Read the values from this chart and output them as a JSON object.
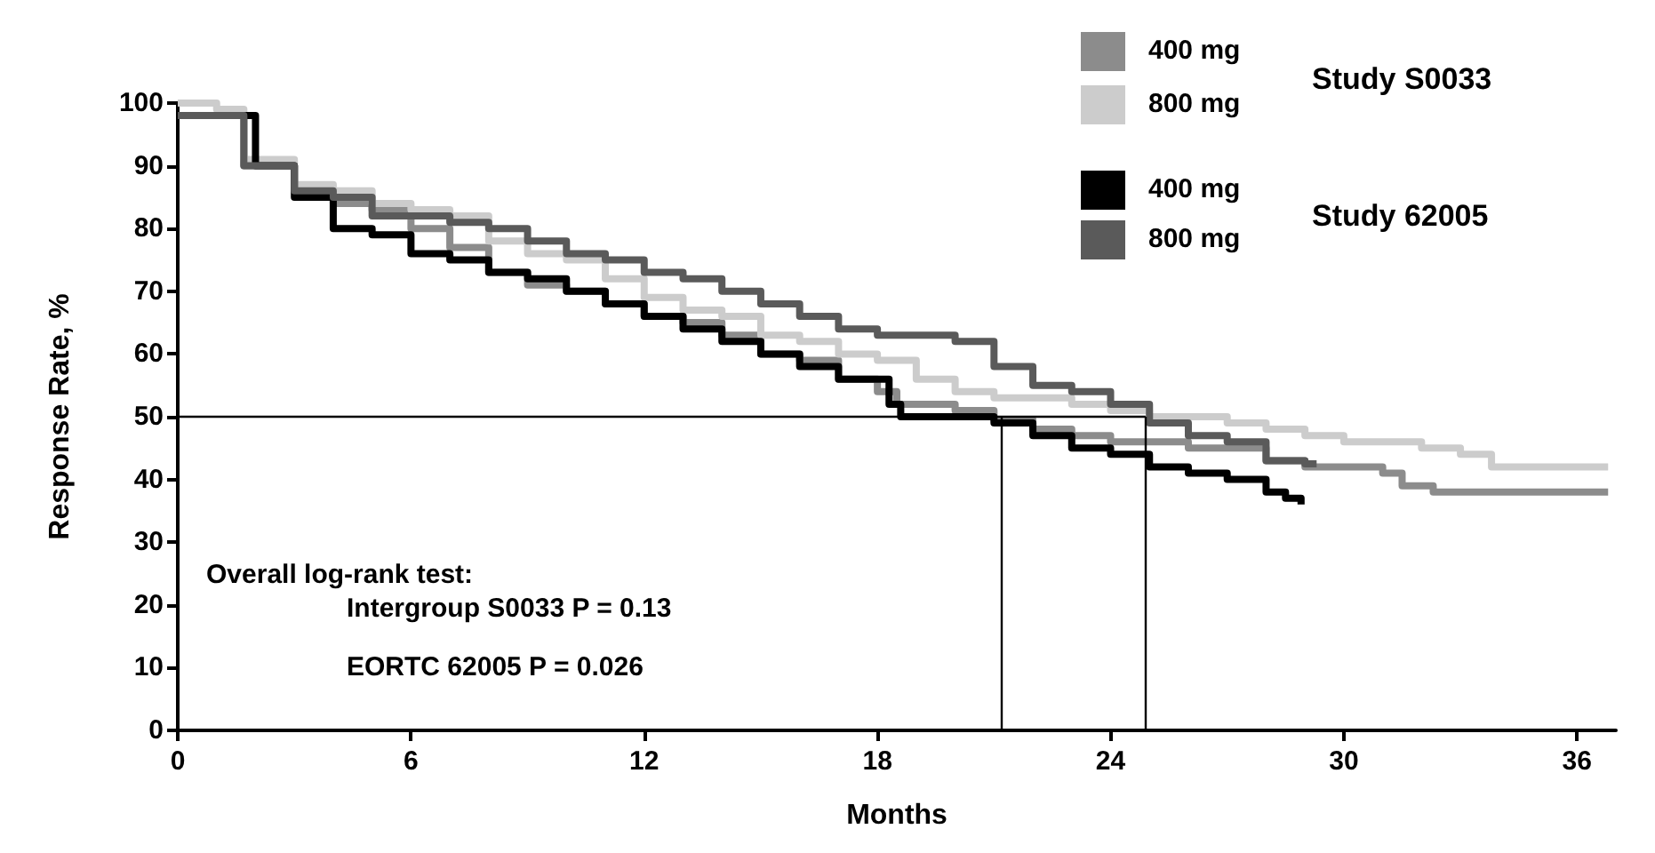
{
  "chart_data": {
    "type": "step",
    "xlabel": "Months",
    "ylabel": "Response Rate, %",
    "xlim": [
      0,
      37
    ],
    "xticks": [
      0,
      6,
      12,
      18,
      24,
      30,
      36
    ],
    "ylim": [
      0,
      100
    ],
    "yticks": [
      0,
      10,
      20,
      30,
      40,
      50,
      60,
      70,
      80,
      90,
      100
    ],
    "grid": false,
    "legend": "top right",
    "marker": "none",
    "line_style": "solid",
    "annotations": [
      "Overall log-rank test:",
      "Intergroup S0033 P = 0.13",
      "EORTC 62005 P = 0.026",
      "Study S0033",
      "Study 62005"
    ],
    "ref_lines": [
      {
        "axis": "y",
        "value": 50,
        "color": "#000000"
      },
      {
        "axis": "x",
        "value": 21.2,
        "color": "#000000"
      },
      {
        "axis": "x",
        "value": 24.9,
        "color": "#000000"
      }
    ],
    "series": [
      {
        "name": "400 mg",
        "color": "#8c8c8c",
        "x": [
          0,
          1.7,
          3,
          4,
          5,
          6,
          7,
          8,
          9,
          10,
          11,
          12,
          13,
          14,
          15,
          16,
          17,
          18,
          18.5,
          20,
          21,
          22,
          23,
          24,
          26,
          28,
          29,
          31,
          31.5,
          32.3,
          36.8
        ],
        "values": [
          98,
          90,
          86,
          84,
          83,
          80,
          77,
          73,
          71,
          70,
          68,
          66,
          65,
          63,
          60,
          59,
          56,
          54,
          52,
          51,
          49.5,
          48,
          47,
          46,
          45,
          43,
          42,
          41,
          39,
          38,
          38
        ]
      },
      {
        "name": "800 mg",
        "color": "#cccccc",
        "x": [
          0,
          1,
          1.7,
          3,
          4,
          5,
          6,
          7,
          8,
          9,
          10,
          11,
          12,
          13,
          14,
          15,
          16,
          17,
          18,
          19,
          20,
          21,
          23,
          24,
          25,
          27,
          28,
          29,
          30,
          32,
          33,
          33.8,
          36.8
        ],
        "values": [
          100,
          99,
          91,
          87,
          86,
          84,
          83,
          82,
          78,
          76,
          75,
          72,
          69,
          67,
          66,
          63,
          62,
          60,
          59,
          56,
          54,
          53,
          52,
          51,
          50,
          49,
          48,
          47,
          46,
          45,
          44,
          42,
          42
        ]
      },
      {
        "name": "400 mg",
        "color": "#000000",
        "x": [
          0,
          2,
          3,
          4,
          5,
          6,
          7,
          8,
          9,
          10,
          11,
          12,
          13,
          14,
          15,
          16,
          17,
          18.3,
          18.6,
          21,
          22,
          23,
          24,
          25,
          26,
          27,
          28,
          28.5,
          28.9
        ],
        "values": [
          98,
          90,
          85,
          80,
          79,
          76,
          75,
          73,
          72,
          70,
          68,
          66,
          64,
          62,
          60,
          58,
          56,
          52,
          50,
          49,
          47,
          45,
          44,
          42,
          41,
          40,
          38,
          37,
          36
        ]
      },
      {
        "name": "800 mg",
        "color": "#5a5a5a",
        "x": [
          0,
          1.7,
          3,
          4,
          5,
          7,
          8,
          9,
          10,
          11,
          12,
          13,
          14,
          15,
          16,
          17,
          18,
          20,
          21,
          22,
          23,
          24,
          25,
          26,
          27,
          28,
          29,
          29.3
        ],
        "values": [
          98,
          90,
          86,
          85,
          82,
          81,
          80,
          78,
          76,
          75,
          73,
          72,
          70,
          68,
          66,
          64,
          63,
          62,
          58,
          55,
          54,
          52,
          49,
          47,
          46,
          43,
          42.5,
          42.5
        ]
      }
    ]
  }
}
